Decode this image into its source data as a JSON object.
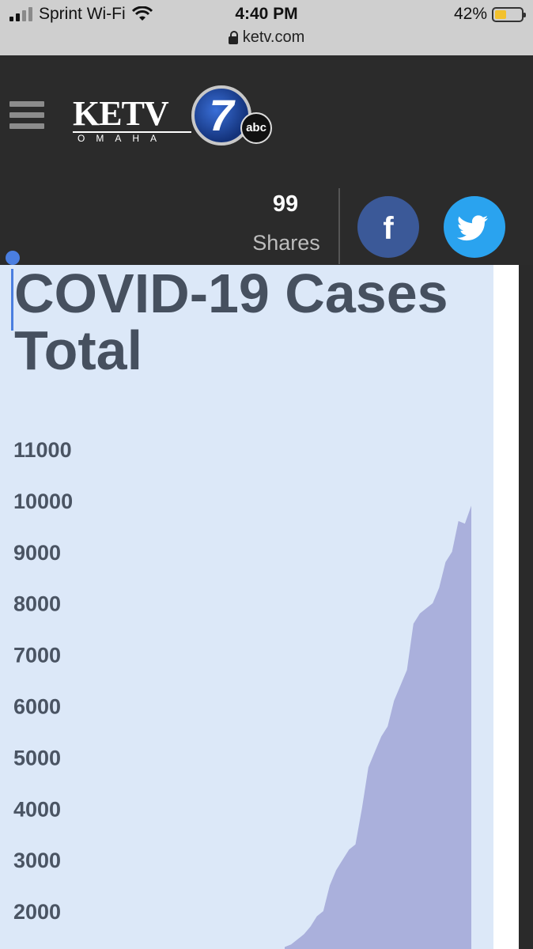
{
  "status_bar": {
    "carrier": "Sprint Wi-Fi",
    "time": "4:40 PM",
    "battery": "42%",
    "battery_level": 0.42,
    "url": "ketv.com"
  },
  "header": {
    "logo_main": "KETV",
    "logo_sub": "OMAHA",
    "logo_number": "7",
    "logo_network": "abc",
    "shares_count": "99",
    "shares_label": "Shares",
    "facebook_label": "f"
  },
  "chart_data": {
    "type": "area",
    "title": "COVID-19 Cases Total",
    "xlabel": "",
    "ylabel": "",
    "y_ticks": [
      "11000",
      "10000",
      "9000",
      "8000",
      "7000",
      "6000",
      "5000",
      "4000",
      "3000",
      "2000"
    ],
    "ylim": [
      1300,
      11000
    ],
    "color": "#aab0dc",
    "values": [
      1300,
      1350,
      1450,
      1550,
      1700,
      1900,
      2000,
      2500,
      2800,
      3000,
      3200,
      3300,
      4000,
      4800,
      5100,
      5400,
      5600,
      6100,
      6400,
      6700,
      7600,
      7800,
      7900,
      8000,
      8300,
      8800,
      9000,
      9600,
      9550,
      9900
    ]
  }
}
